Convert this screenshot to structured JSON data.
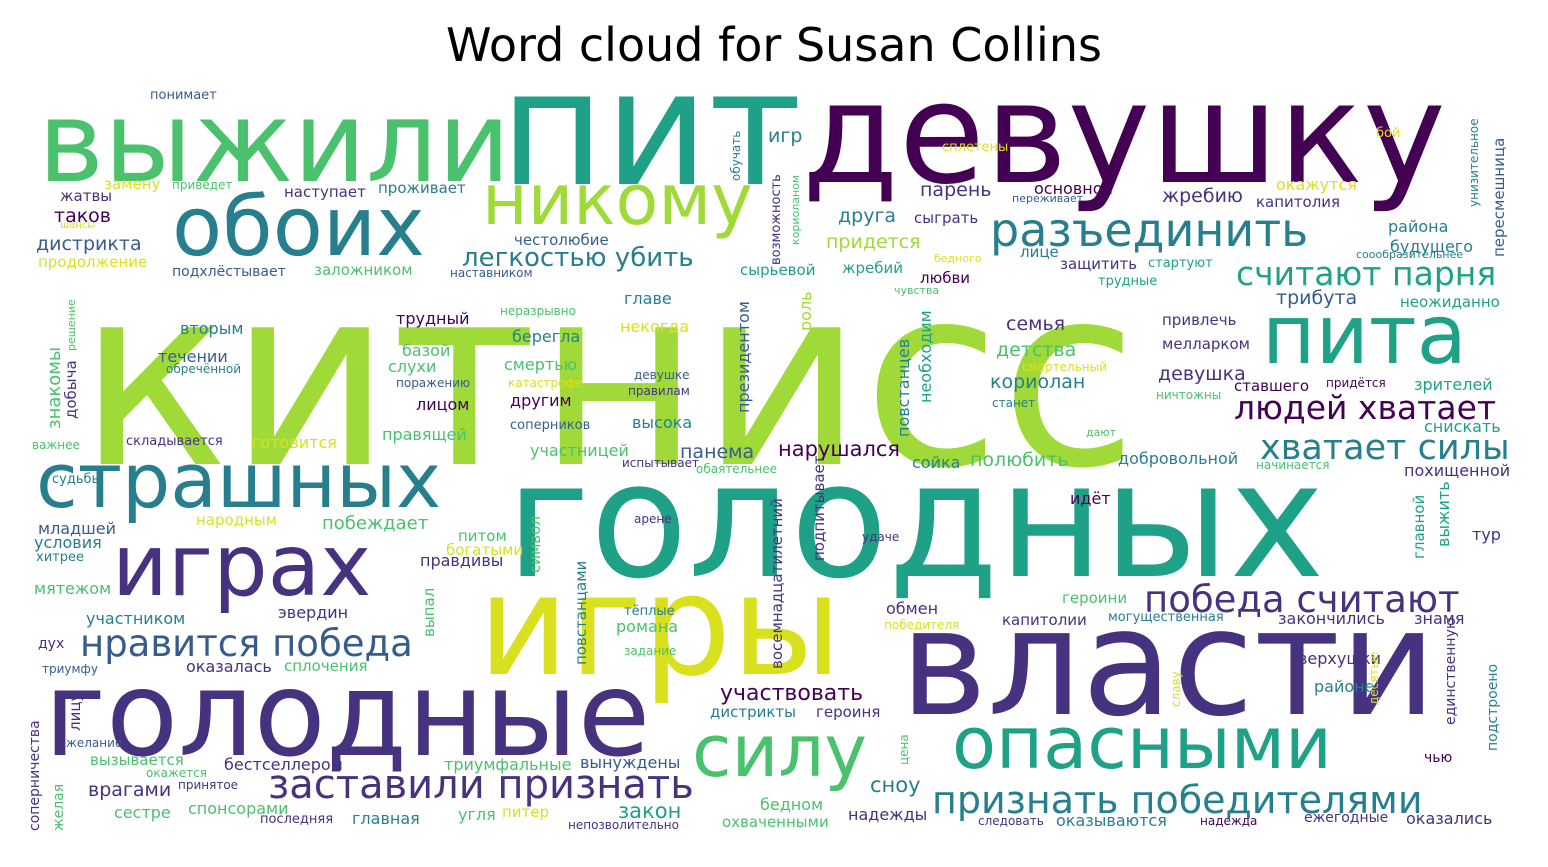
{
  "title": "Word cloud for Susan Collins",
  "palette": {
    "purple": "#440154",
    "indigo": "#46327e",
    "blue": "#365c8d",
    "teal": "#277f8e",
    "green_teal": "#1fa187",
    "green": "#4ac16d",
    "lime": "#a0da39",
    "yellow": "#d9e11f"
  },
  "words": [
    {
      "text": "китнисс",
      "c": "lime"
    },
    {
      "text": "пит",
      "c": "green_teal"
    },
    {
      "text": "девушку",
      "c": "purple"
    },
    {
      "text": "выжили",
      "c": "green"
    },
    {
      "text": "голодных",
      "c": "green_teal"
    },
    {
      "text": "игры",
      "c": "yellow"
    },
    {
      "text": "власти",
      "c": "indigo"
    },
    {
      "text": "голодные",
      "c": "indigo"
    },
    {
      "text": "обоих",
      "c": "teal"
    },
    {
      "text": "никому",
      "c": "lime"
    },
    {
      "text": "страшных",
      "c": "teal"
    },
    {
      "text": "играх",
      "c": "indigo"
    },
    {
      "text": "пита",
      "c": "green_teal"
    },
    {
      "text": "опасными",
      "c": "green_teal"
    },
    {
      "text": "силу",
      "c": "green"
    },
    {
      "text": "разъединить",
      "c": "teal"
    },
    {
      "text": "заставили признать",
      "c": "indigo"
    },
    {
      "text": "признать победителями",
      "c": "teal"
    },
    {
      "text": "нравится победа",
      "c": "blue"
    },
    {
      "text": "победа считают",
      "c": "indigo"
    },
    {
      "text": "хватает силы",
      "c": "teal"
    },
    {
      "text": "людей хватает",
      "c": "purple"
    },
    {
      "text": "считают парня",
      "c": "green_teal"
    },
    {
      "text": "легкостью убить",
      "c": "teal"
    },
    {
      "text": "участвовать",
      "c": "purple"
    },
    {
      "text": "понимает",
      "c": "blue"
    },
    {
      "text": "замену",
      "c": "yellow"
    },
    {
      "text": "приведет",
      "c": "green"
    },
    {
      "text": "жатвы",
      "c": "indigo"
    },
    {
      "text": "наступает",
      "c": "indigo"
    },
    {
      "text": "проживает",
      "c": "teal"
    },
    {
      "text": "таков",
      "c": "purple"
    },
    {
      "text": "дистрикта",
      "c": "blue"
    },
    {
      "text": "шансы",
      "c": "yellow"
    },
    {
      "text": "продолжение",
      "c": "yellow"
    },
    {
      "text": "подхлёстывает",
      "c": "blue"
    },
    {
      "text": "заложником",
      "c": "green"
    },
    {
      "text": "наставником",
      "c": "blue"
    },
    {
      "text": "честолюбие",
      "c": "blue"
    },
    {
      "text": "решение",
      "c": "green"
    },
    {
      "text": "вторым",
      "c": "teal"
    },
    {
      "text": "течении",
      "c": "blue"
    },
    {
      "text": "обречённой",
      "c": "teal"
    },
    {
      "text": "знакомы",
      "c": "green"
    },
    {
      "text": "добыча",
      "c": "indigo"
    },
    {
      "text": "важнее",
      "c": "green"
    },
    {
      "text": "складывается",
      "c": "indigo"
    },
    {
      "text": "готовится",
      "c": "yellow"
    },
    {
      "text": "трудный",
      "c": "purple"
    },
    {
      "text": "неразрывно",
      "c": "green"
    },
    {
      "text": "главе",
      "c": "teal"
    },
    {
      "text": "некогда",
      "c": "yellow"
    },
    {
      "text": "берегла",
      "c": "teal"
    },
    {
      "text": "базой",
      "c": "green"
    },
    {
      "text": "слухи",
      "c": "green"
    },
    {
      "text": "смертью",
      "c": "green"
    },
    {
      "text": "поражению",
      "c": "blue"
    },
    {
      "text": "катастрофе",
      "c": "yellow"
    },
    {
      "text": "лицом",
      "c": "purple"
    },
    {
      "text": "другим",
      "c": "purple"
    },
    {
      "text": "правящей",
      "c": "green"
    },
    {
      "text": "соперников",
      "c": "blue"
    },
    {
      "text": "высока",
      "c": "teal"
    },
    {
      "text": "участницей",
      "c": "green"
    },
    {
      "text": "испытывает",
      "c": "indigo"
    },
    {
      "text": "обаятельнее",
      "c": "green"
    },
    {
      "text": "панема",
      "c": "blue"
    },
    {
      "text": "девушке",
      "c": "blue"
    },
    {
      "text": "правилам",
      "c": "indigo"
    },
    {
      "text": "президентом",
      "c": "blue"
    },
    {
      "text": "роль",
      "c": "lime"
    },
    {
      "text": "повстанцев",
      "c": "teal"
    },
    {
      "text": "необходим",
      "c": "green_teal"
    },
    {
      "text": "нарушался",
      "c": "purple"
    },
    {
      "text": "сойка",
      "c": "teal"
    },
    {
      "text": "полюбить",
      "c": "green"
    },
    {
      "text": "семья",
      "c": "indigo"
    },
    {
      "text": "детства",
      "c": "green"
    },
    {
      "text": "смертельный",
      "c": "yellow"
    },
    {
      "text": "кориолан",
      "c": "teal"
    },
    {
      "text": "девушка",
      "c": "indigo"
    },
    {
      "text": "мелларком",
      "c": "indigo"
    },
    {
      "text": "привлечь",
      "c": "indigo"
    },
    {
      "text": "ставшего",
      "c": "purple"
    },
    {
      "text": "ничтожны",
      "c": "green"
    },
    {
      "text": "станет",
      "c": "teal"
    },
    {
      "text": "дают",
      "c": "green"
    },
    {
      "text": "добровольной",
      "c": "teal"
    },
    {
      "text": "начинается",
      "c": "green"
    },
    {
      "text": "придётся",
      "c": "purple"
    },
    {
      "text": "зрителей",
      "c": "green_teal"
    },
    {
      "text": "снискать",
      "c": "green_teal"
    },
    {
      "text": "похищенной",
      "c": "indigo"
    },
    {
      "text": "игр",
      "c": "teal"
    },
    {
      "text": "обучать",
      "c": "teal"
    },
    {
      "text": "возможность",
      "c": "indigo"
    },
    {
      "text": "кориоланом",
      "c": "green"
    },
    {
      "text": "друга",
      "c": "teal"
    },
    {
      "text": "сыграть",
      "c": "indigo"
    },
    {
      "text": "придется",
      "c": "lime"
    },
    {
      "text": "жребий",
      "c": "green_teal"
    },
    {
      "text": "сырьевой",
      "c": "green_teal"
    },
    {
      "text": "любви",
      "c": "purple"
    },
    {
      "text": "бедного",
      "c": "yellow"
    },
    {
      "text": "чувства",
      "c": "green"
    },
    {
      "text": "парень",
      "c": "indigo"
    },
    {
      "text": "переживает",
      "c": "blue"
    },
    {
      "text": "основной",
      "c": "purple"
    },
    {
      "text": "лице",
      "c": "teal"
    },
    {
      "text": "защитить",
      "c": "indigo"
    },
    {
      "text": "стартуют",
      "c": "green_teal"
    },
    {
      "text": "трудные",
      "c": "green_teal"
    },
    {
      "text": "жребию",
      "c": "indigo"
    },
    {
      "text": "окажутся",
      "c": "yellow"
    },
    {
      "text": "капитолия",
      "c": "indigo"
    },
    {
      "text": "сплетены",
      "c": "yellow"
    },
    {
      "text": "бой",
      "c": "yellow"
    },
    {
      "text": "района",
      "c": "teal"
    },
    {
      "text": "будущего",
      "c": "teal"
    },
    {
      "text": "соообразительнее",
      "c": "teal"
    },
    {
      "text": "неожиданно",
      "c": "green_teal"
    },
    {
      "text": "трибута",
      "c": "blue"
    },
    {
      "text": "унизительное",
      "c": "teal"
    },
    {
      "text": "пересмешница",
      "c": "blue"
    },
    {
      "text": "судьбы",
      "c": "teal"
    },
    {
      "text": "младшей",
      "c": "blue"
    },
    {
      "text": "условия",
      "c": "teal"
    },
    {
      "text": "хитрее",
      "c": "teal"
    },
    {
      "text": "мятежом",
      "c": "green"
    },
    {
      "text": "народным",
      "c": "yellow"
    },
    {
      "text": "побеждает",
      "c": "green"
    },
    {
      "text": "питом",
      "c": "green"
    },
    {
      "text": "богатыми",
      "c": "yellow"
    },
    {
      "text": "правдивы",
      "c": "indigo"
    },
    {
      "text": "символ",
      "c": "green"
    },
    {
      "text": "повстанцами",
      "c": "teal"
    },
    {
      "text": "выпал",
      "c": "green"
    },
    {
      "text": "участником",
      "c": "teal"
    },
    {
      "text": "эвердин",
      "c": "indigo"
    },
    {
      "text": "дух",
      "c": "indigo"
    },
    {
      "text": "триумфу",
      "c": "blue"
    },
    {
      "text": "оказалась",
      "c": "indigo"
    },
    {
      "text": "сплочения",
      "c": "green"
    },
    {
      "text": "соперничества",
      "c": "indigo"
    },
    {
      "text": "лицу",
      "c": "indigo"
    },
    {
      "text": "желание",
      "c": "blue"
    },
    {
      "text": "вызывается",
      "c": "green"
    },
    {
      "text": "окажется",
      "c": "green"
    },
    {
      "text": "бестселлером",
      "c": "indigo"
    },
    {
      "text": "триумфальные",
      "c": "green"
    },
    {
      "text": "принятое",
      "c": "indigo"
    },
    {
      "text": "врагами",
      "c": "indigo"
    },
    {
      "text": "желая",
      "c": "green"
    },
    {
      "text": "спонсорами",
      "c": "green"
    },
    {
      "text": "сестре",
      "c": "green"
    },
    {
      "text": "последняя",
      "c": "indigo"
    },
    {
      "text": "главная",
      "c": "teal"
    },
    {
      "text": "угля",
      "c": "green"
    },
    {
      "text": "питер",
      "c": "yellow"
    },
    {
      "text": "закон",
      "c": "green_teal"
    },
    {
      "text": "непозволительно",
      "c": "indigo"
    },
    {
      "text": "тёплые",
      "c": "teal"
    },
    {
      "text": "романа",
      "c": "green"
    },
    {
      "text": "задание",
      "c": "green"
    },
    {
      "text": "восемнадцатилетний",
      "c": "indigo"
    },
    {
      "text": "подпитывает",
      "c": "indigo"
    },
    {
      "text": "дистрикты",
      "c": "teal"
    },
    {
      "text": "героиня",
      "c": "indigo"
    },
    {
      "text": "вынуждены",
      "c": "blue"
    },
    {
      "text": "бедном",
      "c": "green"
    },
    {
      "text": "охваченными",
      "c": "green"
    },
    {
      "text": "сноу",
      "c": "teal"
    },
    {
      "text": "надежды",
      "c": "indigo"
    },
    {
      "text": "цена",
      "c": "green"
    },
    {
      "text": "арене",
      "c": "indigo"
    },
    {
      "text": "удаче",
      "c": "indigo"
    },
    {
      "text": "идёт",
      "c": "purple"
    },
    {
      "text": "обмен",
      "c": "indigo"
    },
    {
      "text": "победителя",
      "c": "yellow"
    },
    {
      "text": "героини",
      "c": "green"
    },
    {
      "text": "капитолии",
      "c": "indigo"
    },
    {
      "text": "могущественная",
      "c": "teal"
    },
    {
      "text": "закончились",
      "c": "indigo"
    },
    {
      "text": "знамя",
      "c": "indigo"
    },
    {
      "text": "верхушки",
      "c": "indigo"
    },
    {
      "text": "районе",
      "c": "teal"
    },
    {
      "text": "славу",
      "c": "yellow"
    },
    {
      "text": "десятые",
      "c": "yellow"
    },
    {
      "text": "главной",
      "c": "green_teal"
    },
    {
      "text": "выжить",
      "c": "green_teal"
    },
    {
      "text": "единственную",
      "c": "indigo"
    },
    {
      "text": "тур",
      "c": "indigo"
    },
    {
      "text": "чью",
      "c": "purple"
    },
    {
      "text": "подстроено",
      "c": "teal"
    },
    {
      "text": "следовать",
      "c": "indigo"
    },
    {
      "text": "оказываются",
      "c": "teal"
    },
    {
      "text": "надежда",
      "c": "purple"
    },
    {
      "text": "ежегодные",
      "c": "indigo"
    },
    {
      "text": "оказались",
      "c": "indigo"
    }
  ]
}
